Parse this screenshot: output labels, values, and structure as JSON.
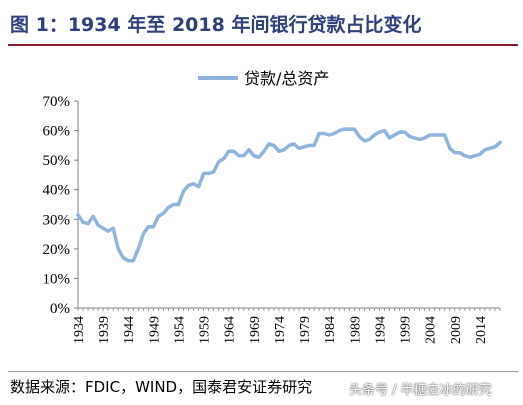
{
  "title": "图 1：1934 年至 2018 年间银行贷款占比变化",
  "source": "数据来源：FDIC，WIND，国泰君安证券研究",
  "watermark": "头条号 / 半糖去冰的研究",
  "colors": {
    "line": "#8fb3df",
    "title": "#2f3f7e",
    "rule": "#8b1a2c",
    "axis": "#808080"
  },
  "chart_data": {
    "type": "line",
    "title": "",
    "xlabel": "",
    "ylabel": "",
    "legend_position": "top-center",
    "grid": false,
    "ylim": [
      0,
      70
    ],
    "yticks": [
      "0%",
      "10%",
      "20%",
      "30%",
      "40%",
      "50%",
      "60%",
      "70%"
    ],
    "xticks": [
      "1934",
      "1939",
      "1944",
      "1949",
      "1954",
      "1959",
      "1964",
      "1969",
      "1974",
      "1979",
      "1984",
      "1989",
      "1994",
      "1999",
      "2004",
      "2009",
      "2014"
    ],
    "series": [
      {
        "name": "贷款/总资产",
        "x": [
          1934,
          1935,
          1936,
          1937,
          1938,
          1939,
          1940,
          1941,
          1942,
          1943,
          1944,
          1945,
          1946,
          1947,
          1948,
          1949,
          1950,
          1951,
          1952,
          1953,
          1954,
          1955,
          1956,
          1957,
          1958,
          1959,
          1960,
          1961,
          1962,
          1963,
          1964,
          1965,
          1966,
          1967,
          1968,
          1969,
          1970,
          1971,
          1972,
          1973,
          1974,
          1975,
          1976,
          1977,
          1978,
          1979,
          1980,
          1981,
          1982,
          1983,
          1984,
          1985,
          1986,
          1987,
          1988,
          1989,
          1990,
          1991,
          1992,
          1993,
          1994,
          1995,
          1996,
          1997,
          1998,
          1999,
          2000,
          2001,
          2002,
          2003,
          2004,
          2005,
          2006,
          2007,
          2008,
          2009,
          2010,
          2011,
          2012,
          2013,
          2014,
          2015,
          2016,
          2017,
          2018
        ],
        "values": [
          31.5,
          29,
          28.5,
          31,
          28,
          27,
          26,
          27,
          20,
          17,
          16,
          16,
          20,
          25,
          27.5,
          27.5,
          31,
          32,
          34,
          35,
          35,
          39.5,
          41.5,
          42,
          41,
          45.5,
          45.5,
          46,
          49.5,
          50.5,
          53,
          53,
          51.5,
          51.5,
          53.5,
          51.5,
          51,
          53,
          55.5,
          55,
          53,
          53.5,
          55,
          55.5,
          54,
          54.5,
          55,
          55,
          59,
          59,
          58.5,
          59,
          60,
          60.5,
          60.5,
          60.5,
          58,
          56.5,
          57,
          58.5,
          59.5,
          60,
          57.5,
          58.5,
          59.5,
          59.5,
          58,
          57.5,
          57,
          57.5,
          58.5,
          58.5,
          58.5,
          58.5,
          54,
          52.5,
          52.5,
          51.5,
          51,
          51.5,
          52,
          53.5,
          54,
          54.5,
          56
        ]
      }
    ]
  }
}
